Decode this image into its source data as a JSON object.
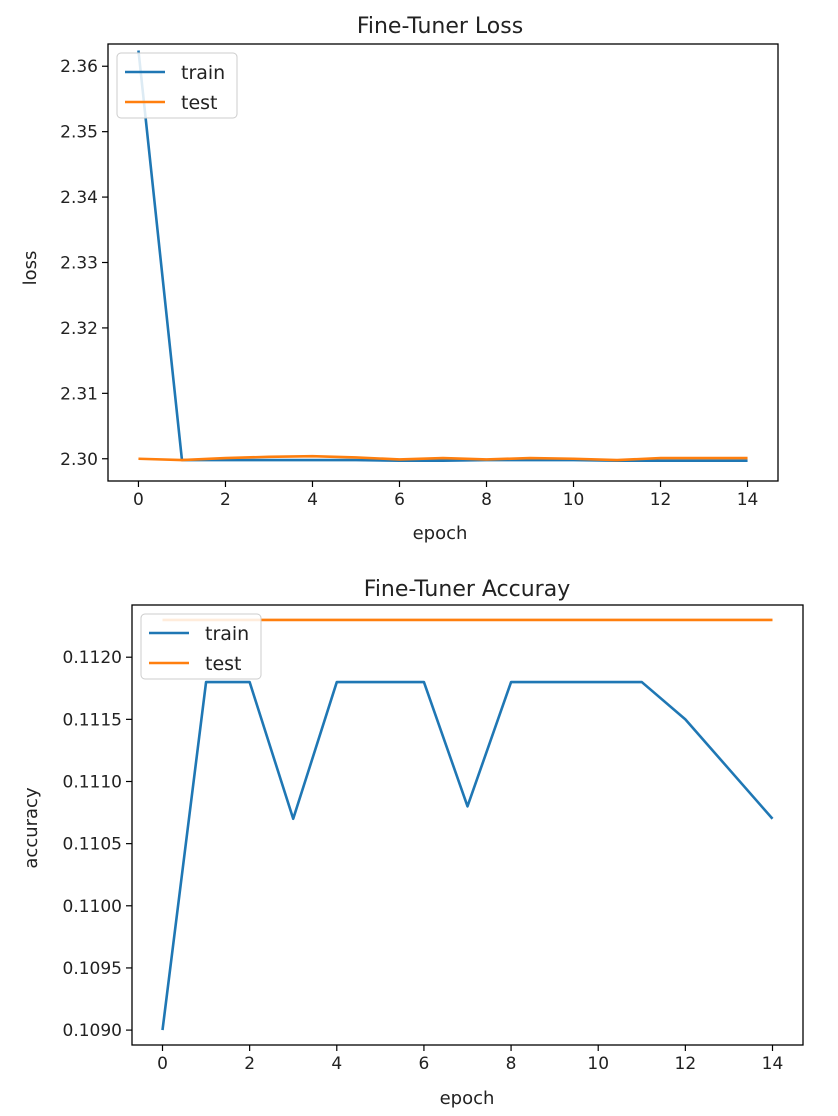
{
  "chart_data": [
    {
      "type": "line",
      "title": "Fine-Tuner Loss",
      "xlabel": "epoch",
      "ylabel": "loss",
      "x": [
        0,
        1,
        2,
        3,
        4,
        5,
        6,
        7,
        8,
        9,
        10,
        11,
        12,
        13,
        14
      ],
      "xlim": [
        -0.7,
        14.7
      ],
      "ylim": [
        2.2966,
        2.3634
      ],
      "xticks": [
        0,
        2,
        4,
        6,
        8,
        10,
        12,
        14
      ],
      "yticks": [
        2.3,
        2.31,
        2.32,
        2.33,
        2.34,
        2.35,
        2.36
      ],
      "ytick_labels": [
        "2.30",
        "2.31",
        "2.32",
        "2.33",
        "2.34",
        "2.35",
        "2.36"
      ],
      "legend": "upper left",
      "grid": false,
      "series": [
        {
          "name": "train",
          "color": "#1f77b4",
          "values": [
            2.3624,
            2.2998,
            2.2998,
            2.2998,
            2.2998,
            2.2998,
            2.2997,
            2.2997,
            2.2998,
            2.2998,
            2.2998,
            2.2997,
            2.2997,
            2.2997,
            2.2997
          ]
        },
        {
          "name": "test",
          "color": "#ff7f0e",
          "values": [
            2.3,
            2.2998,
            2.3001,
            2.3003,
            2.3004,
            2.3002,
            2.2999,
            2.3001,
            2.2999,
            2.3001,
            2.3,
            2.2998,
            2.3001,
            2.3001,
            2.3001
          ]
        }
      ]
    },
    {
      "type": "line",
      "title": "Fine-Tuner Accuray",
      "xlabel": "epoch",
      "ylabel": "accuracy",
      "x": [
        0,
        1,
        2,
        3,
        4,
        5,
        6,
        7,
        8,
        9,
        10,
        11,
        12,
        13,
        14
      ],
      "xlim": [
        -0.7,
        14.7
      ],
      "ylim": [
        0.10888,
        0.11242
      ],
      "xticks": [
        0,
        2,
        4,
        6,
        8,
        10,
        12,
        14
      ],
      "yticks": [
        0.109,
        0.1095,
        0.11,
        0.1105,
        0.111,
        0.1115,
        0.112
      ],
      "ytick_labels": [
        "0.1090",
        "0.1095",
        "0.1100",
        "0.1105",
        "0.1110",
        "0.1115",
        "0.1120"
      ],
      "legend": "upper left",
      "grid": false,
      "series": [
        {
          "name": "train",
          "color": "#1f77b4",
          "values": [
            0.109,
            0.1118,
            0.1118,
            0.1107,
            0.1118,
            0.1118,
            0.1118,
            0.1108,
            0.1118,
            0.1118,
            0.1118,
            0.1118,
            0.1115,
            0.1111,
            0.1107
          ]
        },
        {
          "name": "test",
          "color": "#ff7f0e",
          "values": [
            0.1123,
            0.1123,
            0.1123,
            0.1123,
            0.1123,
            0.1123,
            0.1123,
            0.1123,
            0.1123,
            0.1123,
            0.1123,
            0.1123,
            0.1123,
            0.1123,
            0.1123
          ]
        }
      ]
    }
  ]
}
